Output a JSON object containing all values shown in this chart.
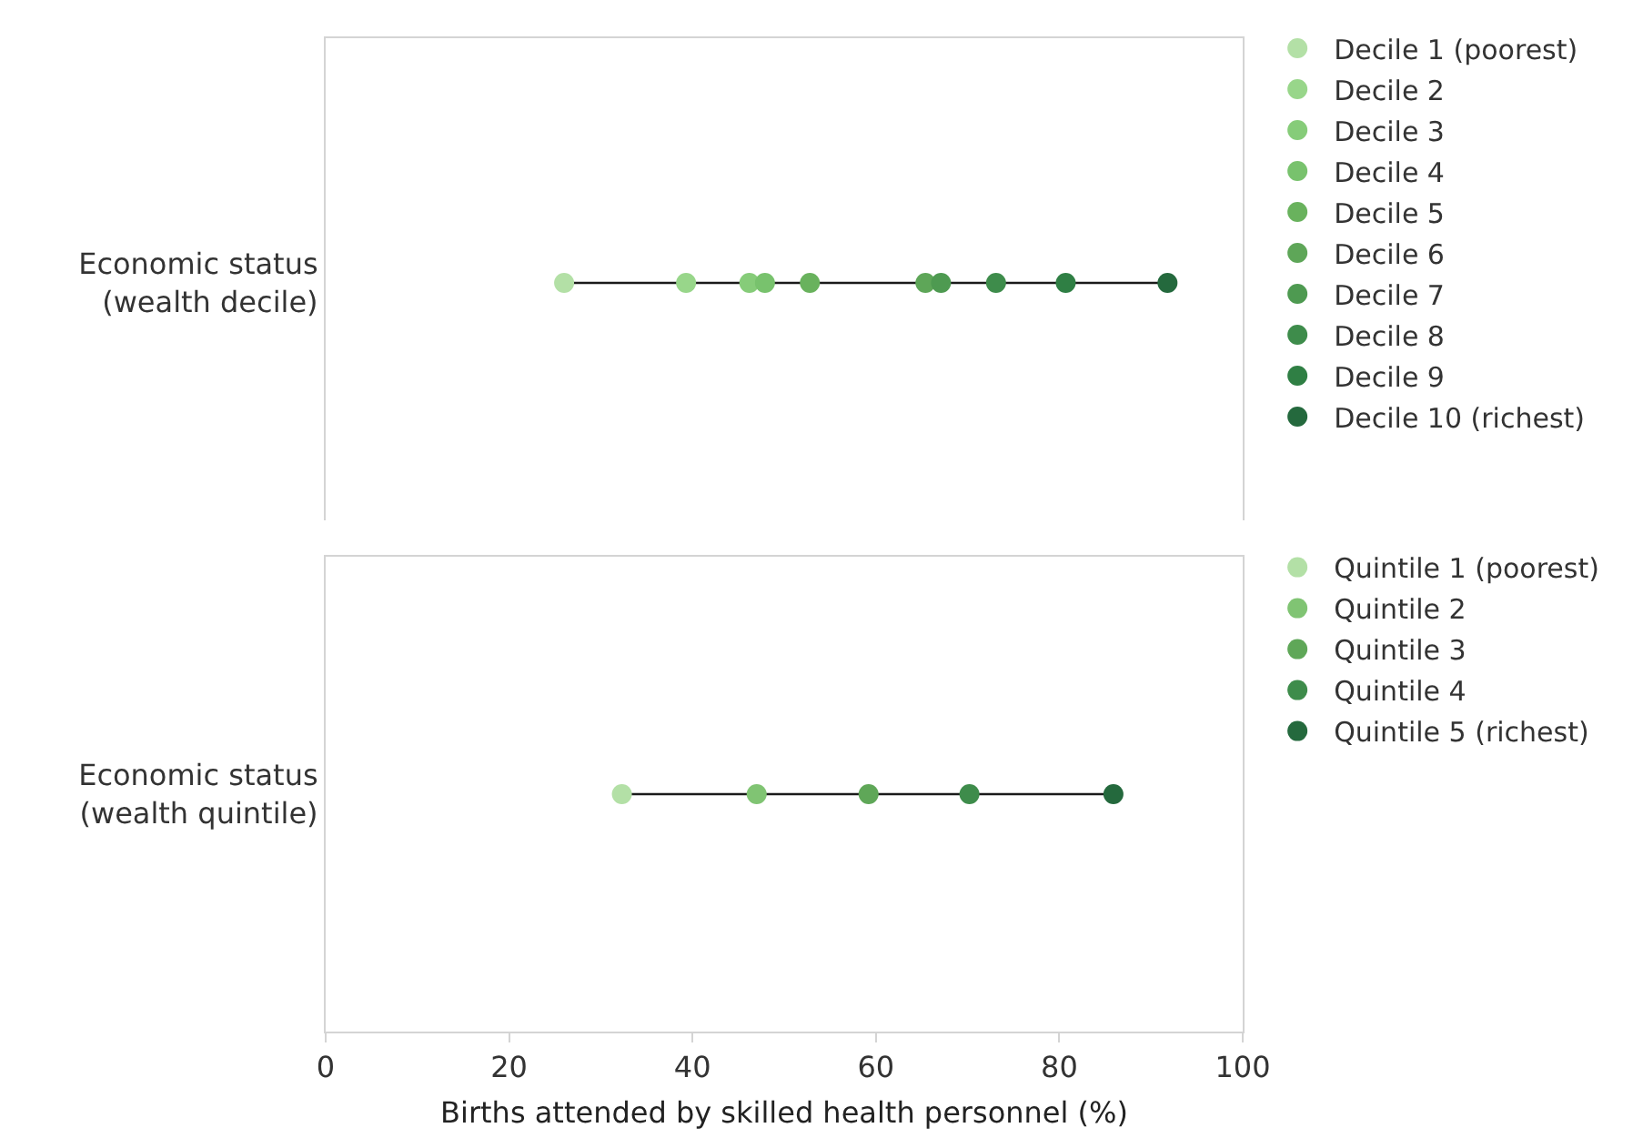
{
  "chart_data": [
    {
      "type": "scatter",
      "orientation": "horizontal",
      "categories": [
        "Economic status\n(wealth decile)"
      ],
      "xlim": [
        0,
        100
      ],
      "tick_labels": "y",
      "grid": false,
      "legend": "right",
      "marker": "circle",
      "series": [
        {
          "name": "Decile 1 (poorest)",
          "color": "#b3e0a6",
          "values": [
            26.0
          ]
        },
        {
          "name": "Decile 2",
          "color": "#98d68a",
          "values": [
            39.3
          ]
        },
        {
          "name": "Decile 3",
          "color": "#86cc79",
          "values": [
            46.2
          ]
        },
        {
          "name": "Decile 4",
          "color": "#78c26d",
          "values": [
            47.9
          ]
        },
        {
          "name": "Decile 5",
          "color": "#69b25d",
          "values": [
            52.8
          ]
        },
        {
          "name": "Decile 6",
          "color": "#5ea658",
          "values": [
            65.4
          ]
        },
        {
          "name": "Decile 7",
          "color": "#4e9a51",
          "values": [
            67.1
          ]
        },
        {
          "name": "Decile 8",
          "color": "#3e8c4b",
          "values": [
            73.1
          ]
        },
        {
          "name": "Decile 9",
          "color": "#2f7f44",
          "values": [
            80.7
          ]
        },
        {
          "name": "Decile 10 (richest)",
          "color": "#24693d",
          "values": [
            91.8
          ]
        }
      ]
    },
    {
      "type": "scatter",
      "orientation": "horizontal",
      "categories": [
        "Economic status\n(wealth quintile)"
      ],
      "xlim": [
        0,
        100
      ],
      "xticks": [
        0,
        20,
        40,
        60,
        80,
        100
      ],
      "xlabel": "Births attended by skilled health personnel (%)",
      "grid": false,
      "legend": "right",
      "marker": "circle",
      "series": [
        {
          "name": "Quintile 1 (poorest)",
          "color": "#b3e0a6",
          "values": [
            32.3
          ]
        },
        {
          "name": "Quintile 2",
          "color": "#80c473",
          "values": [
            47.0
          ]
        },
        {
          "name": "Quintile 3",
          "color": "#5fa758",
          "values": [
            59.2
          ]
        },
        {
          "name": "Quintile 4",
          "color": "#3e8c4b",
          "values": [
            70.2
          ]
        },
        {
          "name": "Quintile 5 (richest)",
          "color": "#24693d",
          "values": [
            85.9
          ]
        }
      ]
    }
  ]
}
